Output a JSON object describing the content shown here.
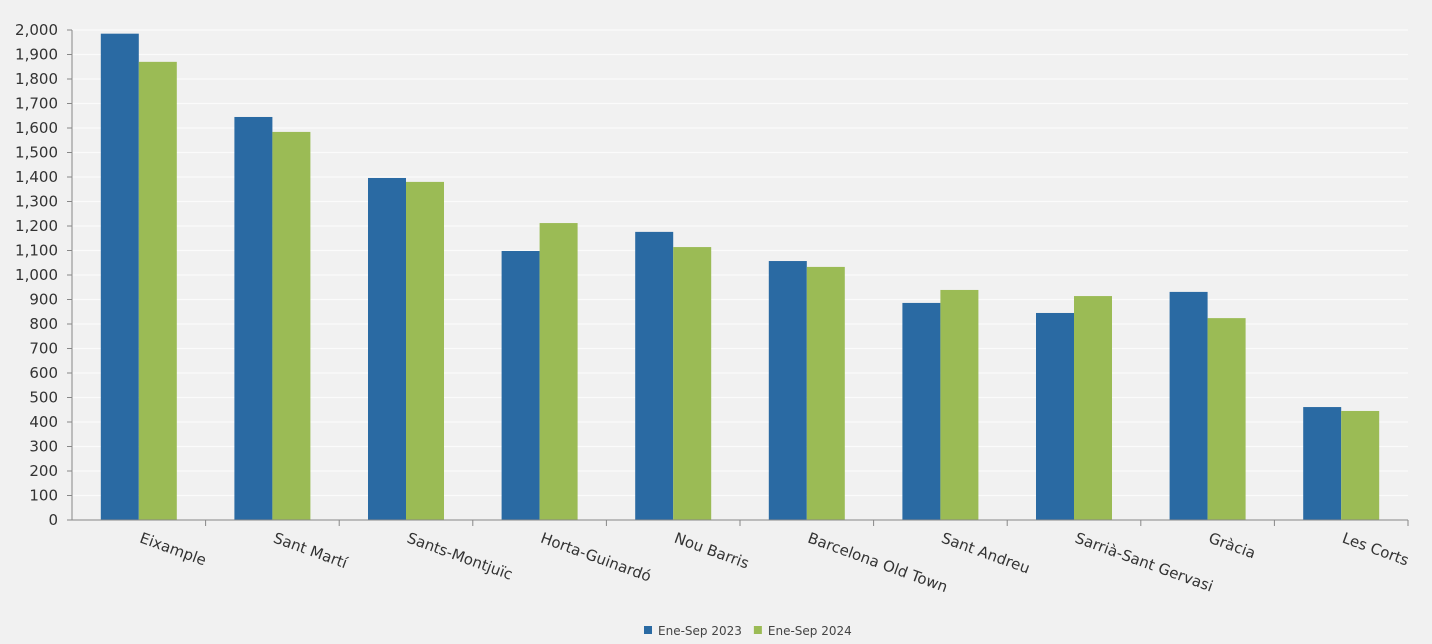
{
  "chart_data": {
    "type": "bar",
    "title": "",
    "xlabel": "",
    "ylabel": "",
    "ylim": [
      0,
      2000
    ],
    "ytick_step": 100,
    "grid": true,
    "legend_position": "bottom",
    "categories": [
      "Eixample",
      "Sant Martí",
      "Sants-Montjuïc",
      "Horta-Guinardó",
      "Nou Barris",
      "Barcelona Old Town",
      "Sant Andreu",
      "Sarrià-Sant Gervasi",
      "Gràcia",
      "Les Corts"
    ],
    "series": [
      {
        "name": "Ene-Sep 2023",
        "color": "#2a6aa3",
        "values": [
          1985,
          1645,
          1396,
          1098,
          1176,
          1057,
          886,
          845,
          931,
          461
        ]
      },
      {
        "name": "Ene-Sep 2024",
        "color": "#9bbb55",
        "values": [
          1870,
          1584,
          1380,
          1212,
          1114,
          1033,
          939,
          914,
          824,
          445
        ]
      }
    ]
  }
}
